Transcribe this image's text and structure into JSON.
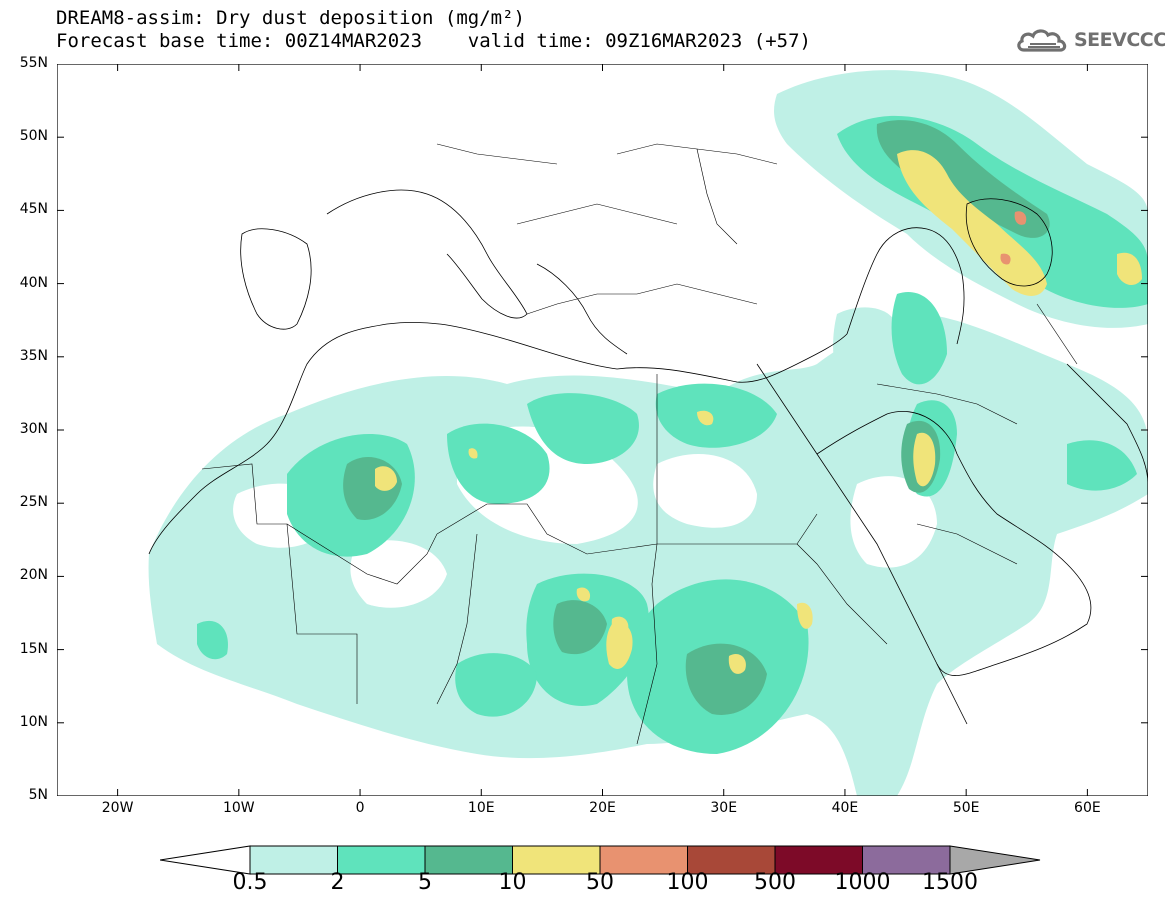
{
  "title": {
    "line1": "DREAM8-assim: Dry dust deposition (mg/m²)",
    "line2": "Forecast base time: 00Z14MAR2023    valid time: 09Z16MAR2023 (+57)"
  },
  "logo": {
    "text": "SEEVCCC",
    "icon": "cloud-icon"
  },
  "axes": {
    "lat_labels": [
      "55N",
      "50N",
      "45N",
      "40N",
      "35N",
      "30N",
      "25N",
      "20N",
      "15N",
      "10N",
      "5N"
    ],
    "lon_labels": [
      "20W",
      "10W",
      "0",
      "10E",
      "20E",
      "30E",
      "40E",
      "50E",
      "60E"
    ],
    "lat_range": [
      5,
      55
    ],
    "lon_range": [
      -25,
      65
    ]
  },
  "legend": {
    "labels": [
      "0.5",
      "2",
      "5",
      "10",
      "50",
      "100",
      "500",
      "1000",
      "1500"
    ],
    "colors": [
      "#bff0e6",
      "#5fe3bc",
      "#55b88f",
      "#f0e47a",
      "#e89270",
      "#a84838",
      "#7d0a28",
      "#8c6b9c"
    ],
    "under_color": "#ffffff",
    "over_color": "#a8a8a8"
  },
  "chart_data": {
    "type": "heatmap",
    "title": "DREAM8-assim: Dry dust deposition (mg/m²)",
    "levels": [
      0.5,
      2,
      5,
      10,
      50,
      100,
      500,
      1000,
      1500
    ],
    "units": "mg/m²",
    "xlim": [
      -25,
      65
    ],
    "ylim": [
      5,
      55
    ]
  }
}
